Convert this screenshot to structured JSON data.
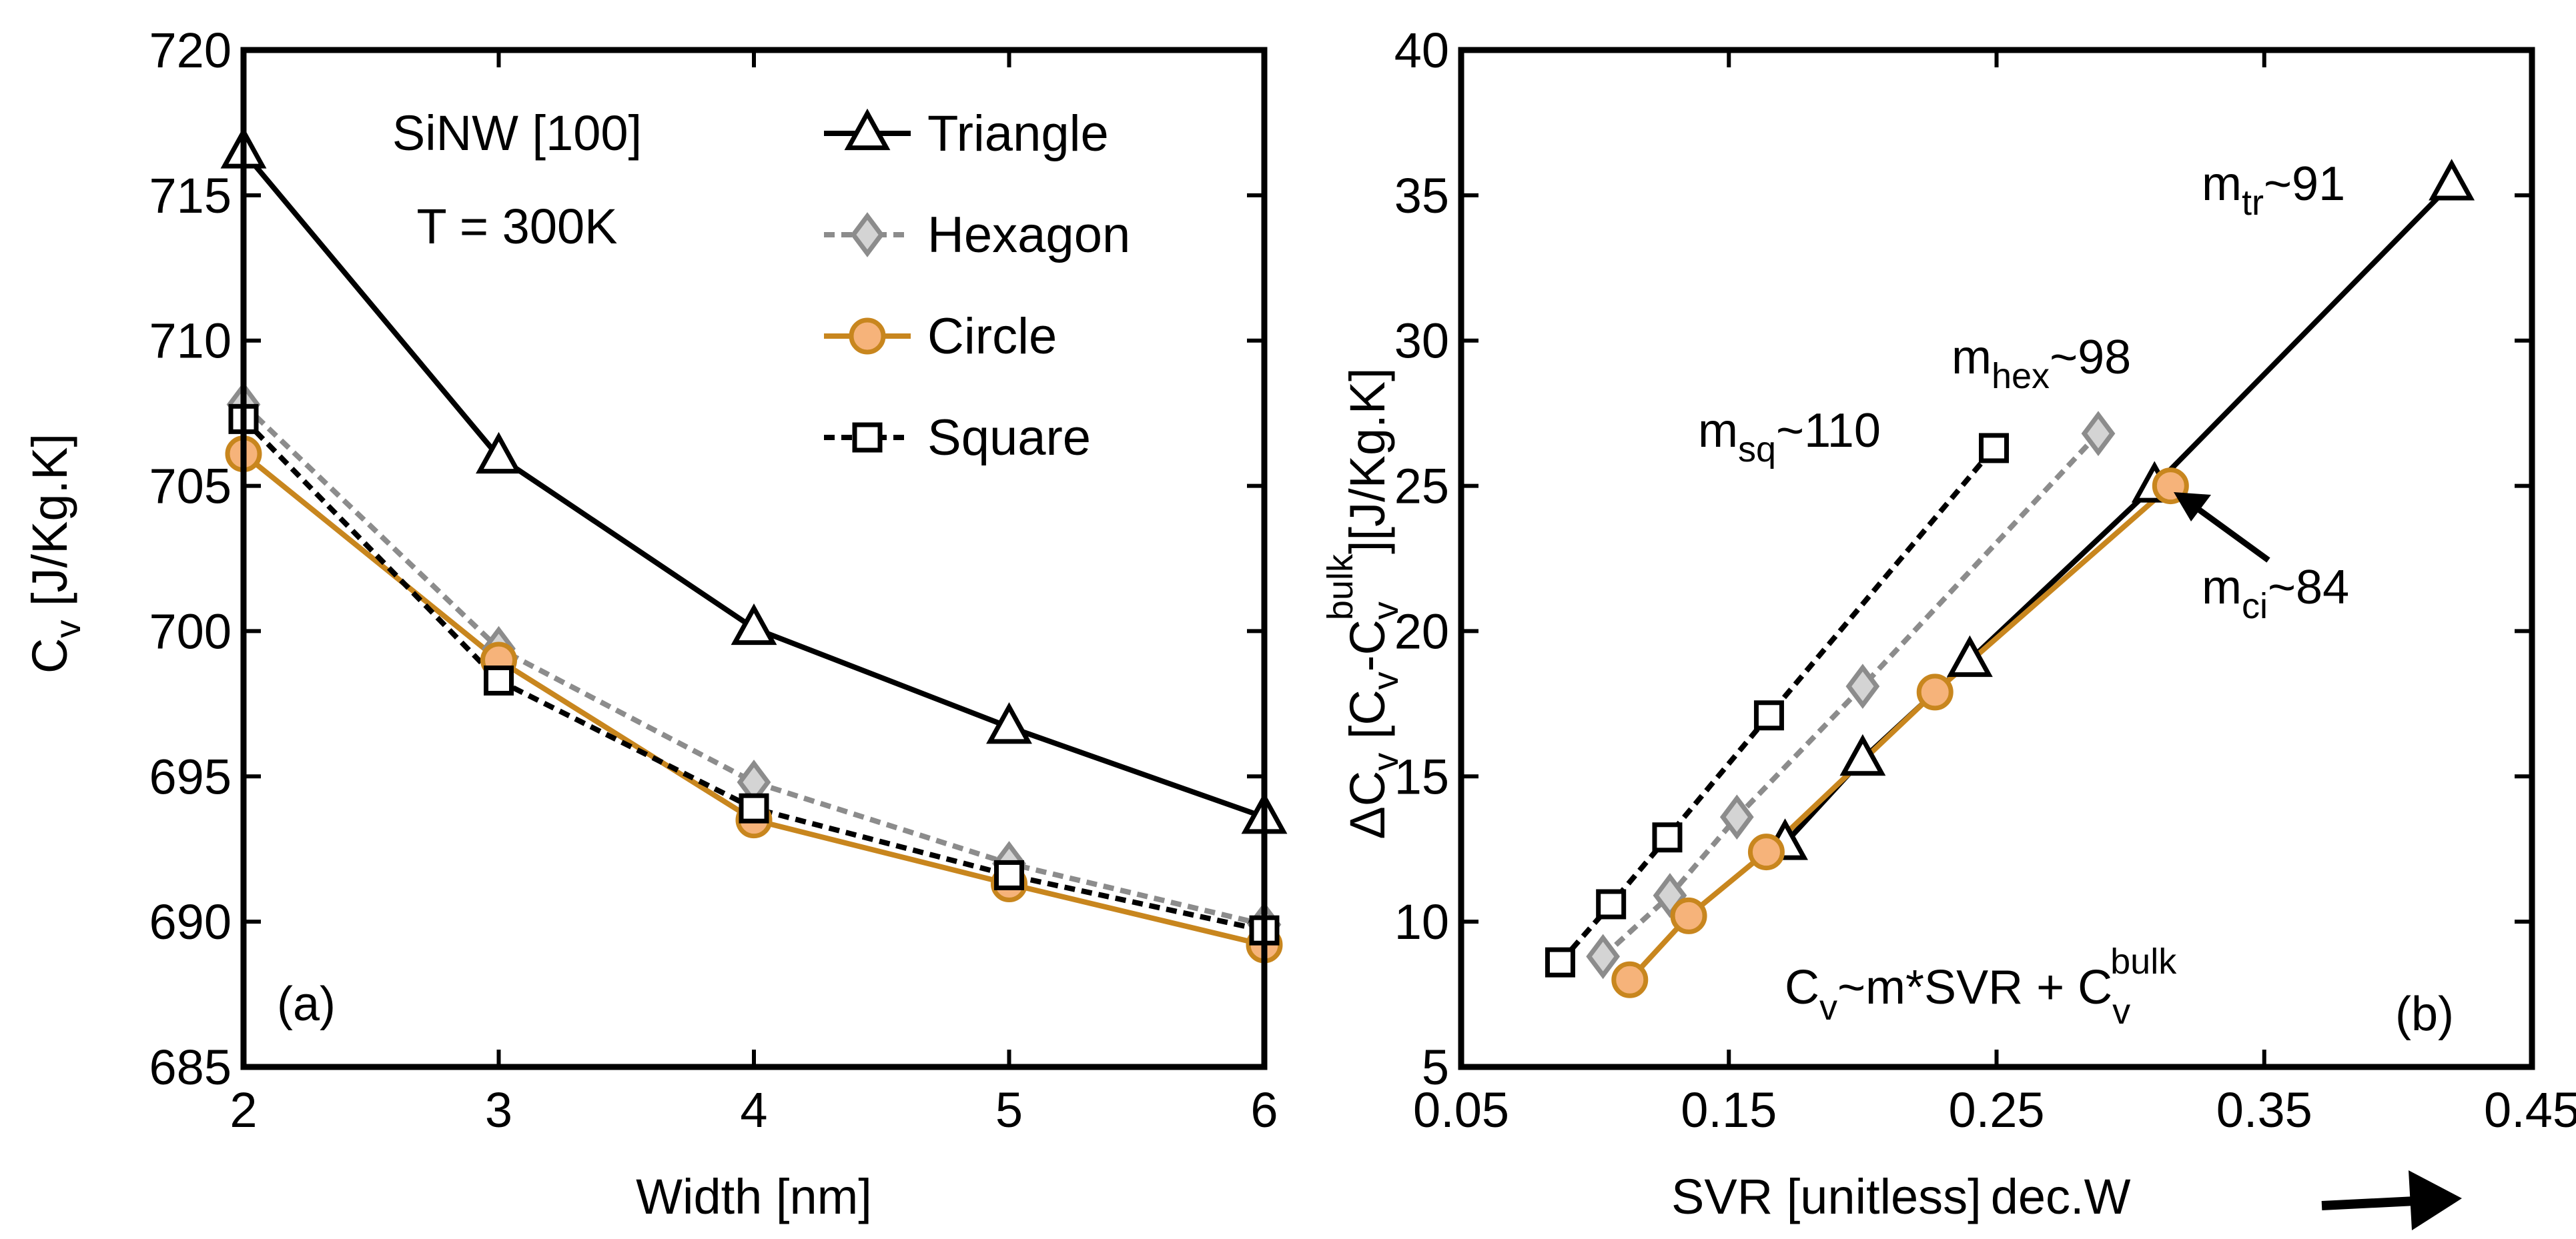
{
  "chart_data": [
    {
      "type": "line",
      "panel_label": "(a)",
      "annotation_lines": [
        "SiNW [100]",
        "T = 300K"
      ],
      "xlabel": "Width [nm]",
      "ylabel_main": "C",
      "ylabel_sub": "v",
      "ylabel_rest": " [J/Kg.K]",
      "xlim": [
        2,
        6
      ],
      "ylim": [
        685,
        720
      ],
      "xticks": [
        "2",
        "3",
        "4",
        "5",
        "6"
      ],
      "yticks": [
        "685",
        "690",
        "695",
        "700",
        "705",
        "710",
        "715",
        "720"
      ],
      "series": [
        {
          "name": "Triangle",
          "marker": "triangle",
          "color": "#000000",
          "dash": "solid",
          "x": [
            2,
            3,
            4,
            5,
            6
          ],
          "y": [
            716.5,
            706.0,
            700.1,
            696.7,
            693.6
          ]
        },
        {
          "name": "Hexagon",
          "marker": "diamond",
          "color": "#8c8c8c",
          "dash": "dotted",
          "x": [
            2,
            3,
            4,
            5,
            6
          ],
          "y": [
            707.8,
            699.4,
            694.8,
            692.0,
            689.9
          ]
        },
        {
          "name": "Circle",
          "marker": "circle",
          "color": "#c8861e",
          "dash": "solid",
          "x": [
            2,
            3,
            4,
            5,
            6
          ],
          "y": [
            706.1,
            699.0,
            693.5,
            691.3,
            689.2
          ]
        },
        {
          "name": "Square",
          "marker": "square",
          "color": "#000000",
          "dash": "dotted",
          "x": [
            2,
            3,
            4,
            5,
            6
          ],
          "y": [
            707.3,
            698.3,
            693.9,
            691.6,
            689.7
          ]
        }
      ]
    },
    {
      "type": "line",
      "panel_label": "(b)",
      "xlabel": "SVR [unitless]",
      "xlabel_extra": "dec.W",
      "ylabel_prefix": "ΔC",
      "ylabel_sub": "v",
      "ylabel_mid": " [C",
      "ylabel_sub2": "v",
      "ylabel_minus": "-C",
      "ylabel_sub3": "v",
      "ylabel_sup": "bulk",
      "ylabel_rest": "][J/Kg.K]",
      "xlim": [
        0.05,
        0.45
      ],
      "ylim": [
        5,
        40
      ],
      "xticks": [
        "0.05",
        "0.15",
        "0.25",
        "0.35",
        "0.45"
      ],
      "yticks": [
        "5",
        "10",
        "15",
        "20",
        "25",
        "30",
        "35",
        "40"
      ],
      "formula": {
        "main": "C",
        "sub": "v",
        "mid": "~m*SVR + C",
        "sub2": "v",
        "sup": "bulk"
      },
      "slope_labels": [
        {
          "main": "m",
          "sub": "tr",
          "value": "~91"
        },
        {
          "main": "m",
          "sub": "hex",
          "value": "~98"
        },
        {
          "main": "m",
          "sub": "sq",
          "value": "~110"
        },
        {
          "main": "m",
          "sub": "ci",
          "value": "~84"
        }
      ],
      "series": [
        {
          "name": "Triangle",
          "marker": "triangle",
          "color": "#000000",
          "dash": "solid",
          "x": [
            0.171,
            0.2,
            0.24,
            0.309,
            0.42
          ],
          "y": [
            12.7,
            15.6,
            19.0,
            25.0,
            35.4
          ]
        },
        {
          "name": "Hexagon",
          "marker": "diamond",
          "color": "#8c8c8c",
          "dash": "dotted",
          "x": [
            0.103,
            0.128,
            0.153,
            0.2,
            0.288
          ],
          "y": [
            8.8,
            10.9,
            13.6,
            18.1,
            26.8
          ]
        },
        {
          "name": "Circle",
          "marker": "circle",
          "color": "#c8861e",
          "dash": "solid",
          "x": [
            0.113,
            0.135,
            0.164,
            0.227,
            0.315
          ],
          "y": [
            8.0,
            10.2,
            12.4,
            17.9,
            25.0
          ]
        },
        {
          "name": "Square",
          "marker": "square",
          "color": "#000000",
          "dash": "dotted",
          "x": [
            0.087,
            0.106,
            0.127,
            0.165,
            0.249
          ],
          "y": [
            8.6,
            10.6,
            12.9,
            17.1,
            26.3
          ]
        }
      ]
    }
  ]
}
